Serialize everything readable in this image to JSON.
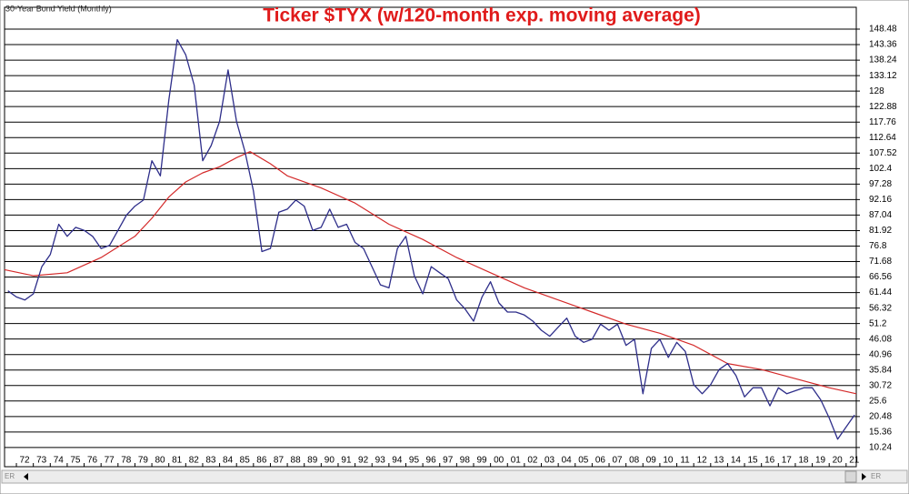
{
  "chart_data": {
    "type": "line",
    "title": "Ticker $TYX (w/120-month exp. moving average)",
    "subtitle": "30-Year Bond Yield (Monthly)",
    "xlim": [
      1971.3,
      2021.6
    ],
    "ylim": [
      3.9,
      155.7
    ],
    "yticks": [
      10.24,
      15.36,
      20.48,
      25.6,
      30.72,
      35.84,
      40.96,
      46.08,
      51.2,
      56.32,
      61.44,
      66.56,
      71.68,
      76.8,
      81.92,
      87.04,
      92.16,
      97.28,
      102.4,
      107.52,
      112.64,
      117.76,
      122.88,
      128,
      133.12,
      138.24,
      143.36,
      148.48
    ],
    "xticks": [
      {
        "value": 1972,
        "label": "72"
      },
      {
        "value": 1973,
        "label": "73"
      },
      {
        "value": 1974,
        "label": "74"
      },
      {
        "value": 1975,
        "label": "75"
      },
      {
        "value": 1976,
        "label": "76"
      },
      {
        "value": 1977,
        "label": "77"
      },
      {
        "value": 1978,
        "label": "78"
      },
      {
        "value": 1979,
        "label": "79"
      },
      {
        "value": 1980,
        "label": "80"
      },
      {
        "value": 1981,
        "label": "81"
      },
      {
        "value": 1982,
        "label": "82"
      },
      {
        "value": 1983,
        "label": "83"
      },
      {
        "value": 1984,
        "label": "84"
      },
      {
        "value": 1985,
        "label": "85"
      },
      {
        "value": 1986,
        "label": "86"
      },
      {
        "value": 1987,
        "label": "87"
      },
      {
        "value": 1988,
        "label": "88"
      },
      {
        "value": 1989,
        "label": "89"
      },
      {
        "value": 1990,
        "label": "90"
      },
      {
        "value": 1991,
        "label": "91"
      },
      {
        "value": 1992,
        "label": "92"
      },
      {
        "value": 1993,
        "label": "93"
      },
      {
        "value": 1994,
        "label": "94"
      },
      {
        "value": 1995,
        "label": "95"
      },
      {
        "value": 1996,
        "label": "96"
      },
      {
        "value": 1997,
        "label": "97"
      },
      {
        "value": 1998,
        "label": "98"
      },
      {
        "value": 1999,
        "label": "99"
      },
      {
        "value": 2000,
        "label": "00"
      },
      {
        "value": 2001,
        "label": "01"
      },
      {
        "value": 2002,
        "label": "02"
      },
      {
        "value": 2003,
        "label": "03"
      },
      {
        "value": 2004,
        "label": "04"
      },
      {
        "value": 2005,
        "label": "05"
      },
      {
        "value": 2006,
        "label": "06"
      },
      {
        "value": 2007,
        "label": "07"
      },
      {
        "value": 2008,
        "label": "08"
      },
      {
        "value": 2009,
        "label": "09"
      },
      {
        "value": 2010,
        "label": "10"
      },
      {
        "value": 2011,
        "label": "11"
      },
      {
        "value": 2012,
        "label": "12"
      },
      {
        "value": 2013,
        "label": "13"
      },
      {
        "value": 2014,
        "label": "14"
      },
      {
        "value": 2015,
        "label": "15"
      },
      {
        "value": 2016,
        "label": "16"
      },
      {
        "value": 2017,
        "label": "17"
      },
      {
        "value": 2018,
        "label": "18"
      },
      {
        "value": 2019,
        "label": "19"
      },
      {
        "value": 2020,
        "label": "20"
      },
      {
        "value": 2021,
        "label": "21"
      }
    ],
    "grid": true,
    "price": {
      "color": "#2e2e8a",
      "x": [
        1971.5,
        1972,
        1972.5,
        1973,
        1973.5,
        1974,
        1974.5,
        1975,
        1975.5,
        1976,
        1976.5,
        1977,
        1977.5,
        1978,
        1978.5,
        1979,
        1979.5,
        1980,
        1980.5,
        1981,
        1981.5,
        1982,
        1982.5,
        1983,
        1983.5,
        1984,
        1984.5,
        1985,
        1985.5,
        1986,
        1986.5,
        1987,
        1987.5,
        1988,
        1988.5,
        1989,
        1989.5,
        1990,
        1990.5,
        1991,
        1991.5,
        1992,
        1992.5,
        1993,
        1993.5,
        1994,
        1994.5,
        1995,
        1995.5,
        1996,
        1996.5,
        1997,
        1997.5,
        1998,
        1998.5,
        1999,
        1999.5,
        2000,
        2000.5,
        2001,
        2001.5,
        2002,
        2002.5,
        2003,
        2003.5,
        2004,
        2004.5,
        2005,
        2005.5,
        2006,
        2006.5,
        2007,
        2007.5,
        2008,
        2008.5,
        2009,
        2009.5,
        2010,
        2010.5,
        2011,
        2011.5,
        2012,
        2012.5,
        2013,
        2013.5,
        2014,
        2014.5,
        2015,
        2015.5,
        2016,
        2016.5,
        2017,
        2017.5,
        2018,
        2018.5,
        2019,
        2019.5,
        2020,
        2020.5,
        2021,
        2021.5
      ],
      "values": [
        62,
        60,
        59,
        61,
        70,
        74,
        84,
        80,
        83,
        82,
        80,
        76,
        77,
        82,
        87,
        90,
        92,
        105,
        100,
        125,
        145,
        140,
        130,
        105,
        110,
        118,
        135,
        118,
        108,
        95,
        75,
        76,
        88,
        89,
        92,
        90,
        82,
        83,
        89,
        83,
        84,
        78,
        76,
        70,
        64,
        63,
        76,
        80,
        67,
        61,
        70,
        68,
        66,
        59,
        56,
        52,
        60,
        65,
        58,
        55,
        55,
        54,
        52,
        49,
        47,
        50,
        53,
        47,
        45,
        46,
        51,
        49,
        51,
        44,
        46,
        28,
        43,
        46,
        40,
        45,
        42,
        31,
        28,
        31,
        36,
        38,
        34,
        27,
        30,
        30,
        24,
        30,
        28,
        29,
        30,
        30,
        26,
        20,
        13,
        17,
        21
      ]
    },
    "moving_average": {
      "color": "#d42a2a",
      "x": [
        1971.3,
        1973,
        1975,
        1977,
        1979,
        1980,
        1981,
        1982,
        1983,
        1984,
        1985,
        1985.8,
        1987,
        1988,
        1990,
        1992,
        1994,
        1996,
        1998,
        2000,
        2002,
        2004,
        2006,
        2008,
        2010,
        2012,
        2014,
        2016,
        2018,
        2020,
        2021.6
      ],
      "values": [
        69,
        67,
        68,
        73,
        80,
        86,
        93,
        98,
        101,
        103,
        106,
        108,
        104,
        100,
        96,
        91,
        84,
        79,
        73,
        68,
        63,
        59,
        55,
        51,
        48,
        44,
        38,
        36,
        33,
        30,
        28
      ]
    },
    "ui": {
      "scroll_left_label": "ER",
      "scroll_right_label": "ER"
    }
  }
}
